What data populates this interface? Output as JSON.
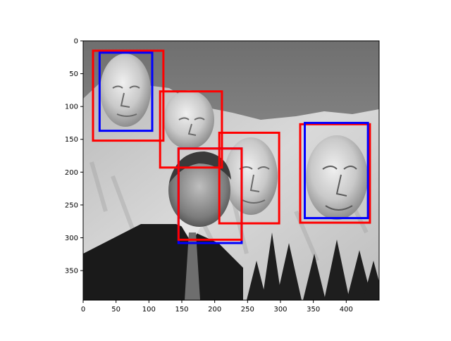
{
  "figure": {
    "type": "image-with-bounding-boxes",
    "image_desc": "Grayscale photo: Mount Rushmore carved faces with a man in a dark suit in the foreground",
    "xlim": [
      0,
      450
    ],
    "ylim": [
      395,
      0
    ],
    "x_ticks": [
      0,
      50,
      100,
      150,
      200,
      250,
      300,
      350,
      400
    ],
    "y_ticks": [
      0,
      50,
      100,
      150,
      200,
      250,
      300,
      350
    ],
    "colors": {
      "red": "#ff0000",
      "blue": "#0000ff",
      "axis": "#000000"
    },
    "boxes": [
      {
        "name": "red-box-washington",
        "color": "red",
        "x0": 15,
        "y0": 15,
        "x1": 122,
        "y1": 152
      },
      {
        "name": "blue-box-washington",
        "color": "blue",
        "x0": 25,
        "y0": 18,
        "x1": 105,
        "y1": 137
      },
      {
        "name": "red-box-jefferson",
        "color": "red",
        "x0": 117,
        "y0": 77,
        "x1": 211,
        "y1": 193
      },
      {
        "name": "red-box-roosevelt",
        "color": "red",
        "x0": 207,
        "y0": 140,
        "x1": 298,
        "y1": 278
      },
      {
        "name": "blue-box-man",
        "color": "blue",
        "x0": 145,
        "y0": 164,
        "x1": 241,
        "y1": 308
      },
      {
        "name": "red-box-man",
        "color": "red",
        "x0": 145,
        "y0": 164,
        "x1": 241,
        "y1": 303
      },
      {
        "name": "red-box-lincoln",
        "color": "red",
        "x0": 330,
        "y0": 127,
        "x1": 436,
        "y1": 277
      },
      {
        "name": "blue-box-lincoln",
        "color": "blue",
        "x0": 337,
        "y0": 125,
        "x1": 433,
        "y1": 270
      }
    ]
  }
}
